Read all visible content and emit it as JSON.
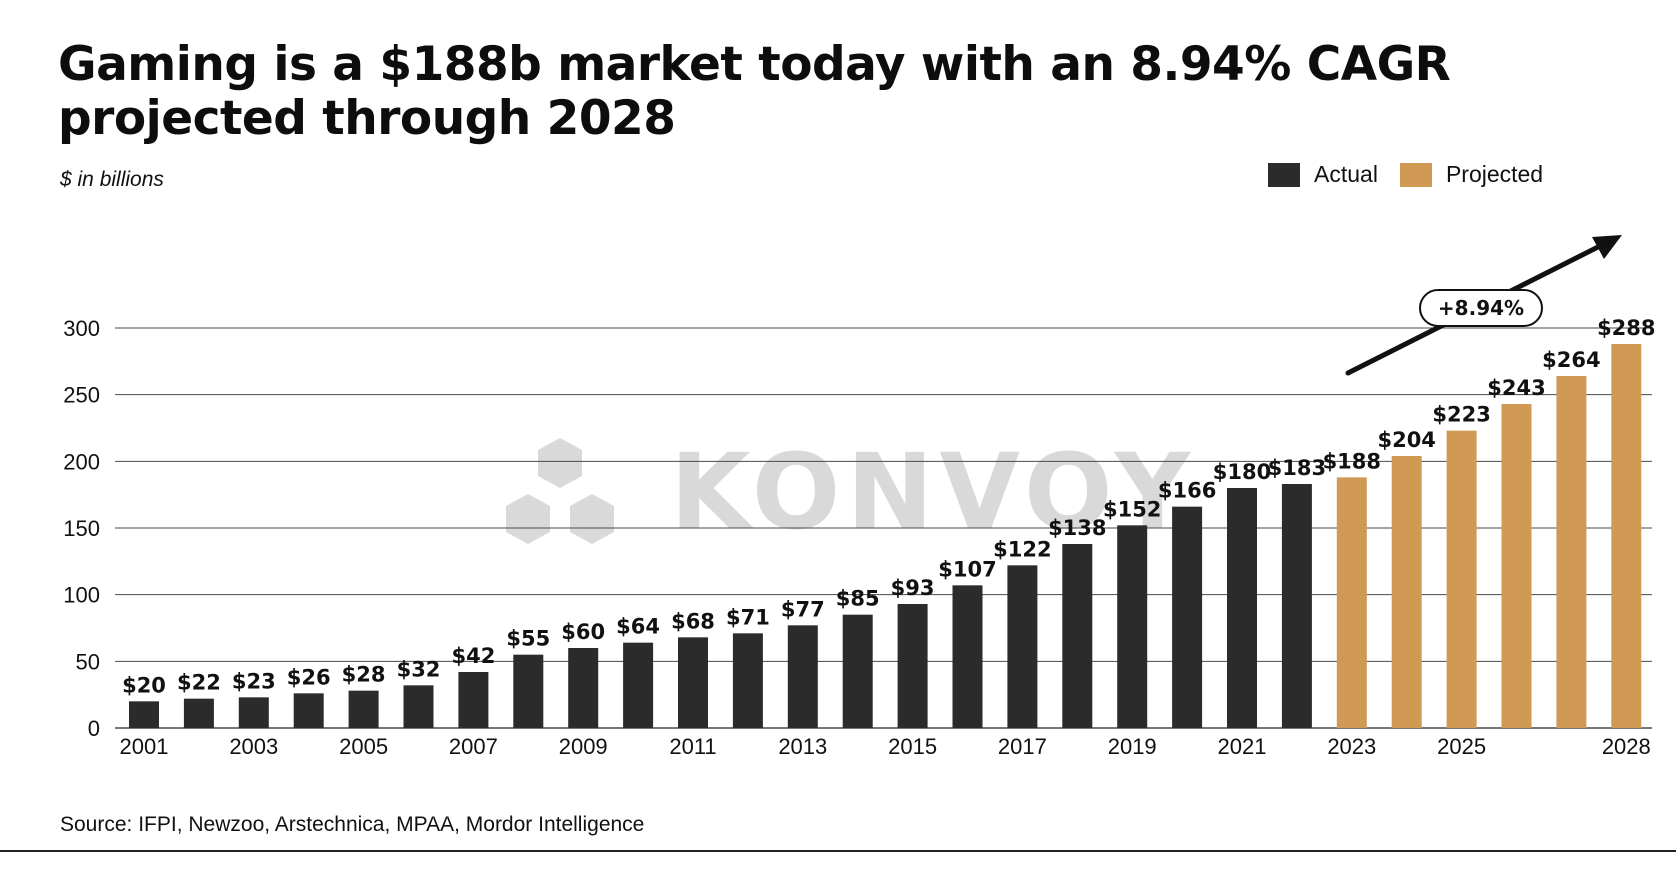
{
  "title": "Gaming is a $188b market today with an 8.94% CAGR projected through 2028",
  "subtitle": "$ in billions",
  "legend": {
    "actual": "Actual",
    "projected": "Projected"
  },
  "source": "Source: IFPI, Newzoo, Arstechnica, MPAA, Mordor Intelligence",
  "watermark": "KONVOY",
  "colors": {
    "actual": "#2b2b2b",
    "projected": "#d09a55",
    "grid": "#4a4a4a",
    "watermark": "#d9d9d9"
  },
  "chart_data": {
    "type": "bar",
    "title": "Gaming is a $188b market today with an 8.94% CAGR projected through 2028",
    "ylabel": "$ in billions",
    "xlabel": "",
    "ylim": [
      0,
      300
    ],
    "yticks": [
      0,
      50,
      100,
      150,
      200,
      250,
      300
    ],
    "grid": true,
    "legend_position": "top-right",
    "categories": [
      "2001",
      "2002",
      "2003",
      "2004",
      "2005",
      "2006",
      "2007",
      "2008",
      "2009",
      "2010",
      "2011",
      "2012",
      "2013",
      "2014",
      "2015",
      "2016",
      "2017",
      "2018",
      "2019",
      "2020",
      "2021",
      "2022",
      "2023",
      "2024",
      "2025",
      "2026",
      "2027",
      "2028"
    ],
    "x_tick_labels": [
      "2001",
      "",
      "2003",
      "",
      "2005",
      "",
      "2007",
      "",
      "2009",
      "",
      "2011",
      "",
      "2013",
      "",
      "2015",
      "",
      "2017",
      "",
      "2019",
      "",
      "2021",
      "",
      "2023",
      "",
      "2025",
      "",
      "",
      "2028"
    ],
    "series": [
      {
        "name": "Actual",
        "values": [
          20,
          22,
          23,
          26,
          28,
          32,
          42,
          55,
          60,
          64,
          68,
          71,
          77,
          85,
          93,
          107,
          122,
          138,
          152,
          166,
          180,
          183,
          null,
          null,
          null,
          null,
          null,
          null
        ]
      },
      {
        "name": "Projected",
        "values": [
          null,
          null,
          null,
          null,
          null,
          null,
          null,
          null,
          null,
          null,
          null,
          null,
          null,
          null,
          null,
          null,
          null,
          null,
          null,
          null,
          null,
          null,
          188,
          204,
          223,
          243,
          264,
          288
        ]
      }
    ],
    "data_labels": [
      "$20",
      "$22",
      "$23",
      "$26",
      "$28",
      "$32",
      "$42",
      "$55",
      "$60",
      "$64",
      "$68",
      "$71",
      "$77",
      "$85",
      "$93",
      "$107",
      "$122",
      "$138",
      "$152",
      "$166",
      "$180",
      "$183",
      "$188",
      "$204",
      "$223",
      "$243",
      "$264",
      "$288"
    ],
    "annotation": "+8.94%"
  }
}
